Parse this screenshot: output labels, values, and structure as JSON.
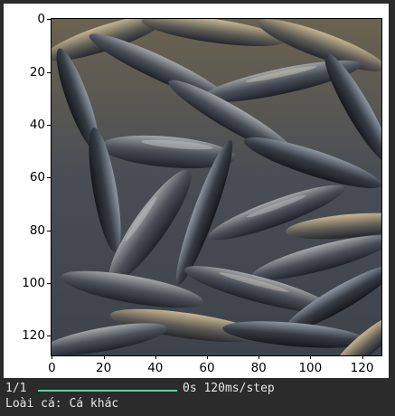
{
  "figure": {
    "image_description": "fish",
    "yticks": [
      "0",
      "20",
      "40",
      "60",
      "80",
      "100",
      "120"
    ],
    "xticks": [
      "0",
      "20",
      "40",
      "60",
      "80",
      "100",
      "120"
    ]
  },
  "chart_data": {
    "type": "image",
    "x_ticks": [
      0,
      20,
      40,
      60,
      80,
      100,
      120
    ],
    "y_ticks": [
      0,
      20,
      40,
      60,
      80,
      100,
      120
    ],
    "x_range": [
      -0.5,
      127.5
    ],
    "y_range": [
      127.5,
      -0.5
    ]
  },
  "console": {
    "progress_count": "1/1",
    "progress": 1.0,
    "progress_color": "#5fd0a0",
    "timing": "0s 120ms/step",
    "result": "Loài cá: Cá khác"
  }
}
